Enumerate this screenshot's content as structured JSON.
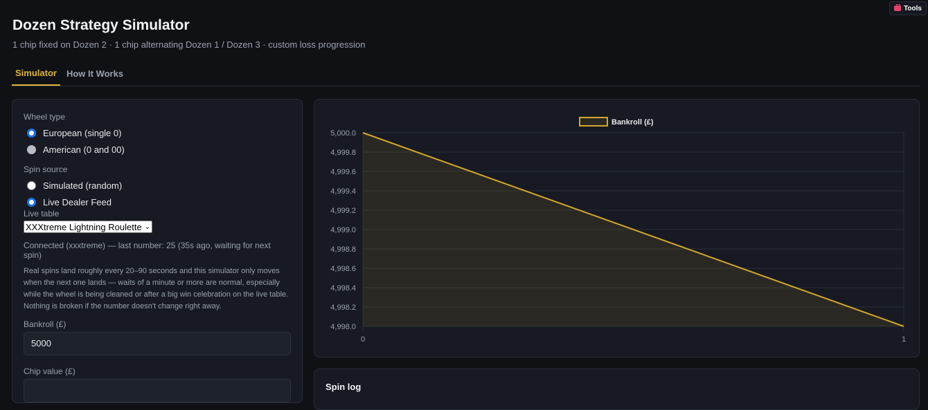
{
  "tools": {
    "label": "Tools",
    "icon": "toolbox-icon"
  },
  "header": {
    "title": "Dozen Strategy Simulator",
    "subtitle": "1 chip fixed on Dozen 2 · 1 chip alternating Dozen 1 / Dozen 3 · custom loss progression"
  },
  "tabs": [
    {
      "label": "Simulator",
      "active": true
    },
    {
      "label": "How It Works",
      "active": false
    }
  ],
  "controls": {
    "wheel_type": {
      "label": "Wheel type",
      "options": [
        {
          "label": "European (single 0)",
          "checked": true
        },
        {
          "label": "American (0 and 00)",
          "checked": false
        }
      ]
    },
    "spin_source": {
      "label": "Spin source",
      "options": [
        {
          "label": "Simulated (random)",
          "checked": false
        },
        {
          "label": "Live Dealer Feed",
          "checked": true
        }
      ]
    },
    "live_table": {
      "label": "Live table",
      "selected": "XXXtreme Lightning Roulette"
    },
    "status": "Connected (xxxtreme) — last number: 25 (35s ago, waiting for next spin)",
    "note": "Real spins land roughly every 20–90 seconds and this simulator only moves when the next one lands — waits of a minute or more are normal, especially while the wheel is being cleaned or after a big win celebration on the live table. Nothing is broken if the number doesn't change right away.",
    "bankroll": {
      "label": "Bankroll (£)",
      "value": "5000"
    },
    "chip_value": {
      "label": "Chip value (£)",
      "value": ""
    }
  },
  "chart_data": {
    "type": "line",
    "title": "",
    "xlabel": "",
    "ylabel": "",
    "legend": "top-center",
    "grid": true,
    "x_ticks": [
      "0",
      "1"
    ],
    "y_ticks": [
      "5,000.0",
      "4,999.8",
      "4,999.6",
      "4,999.4",
      "4,999.2",
      "4,999.0",
      "4,998.8",
      "4,998.6",
      "4,998.4",
      "4,998.2",
      "4,998.0"
    ],
    "xlim": [
      0,
      1
    ],
    "ylim": [
      4998.0,
      5000.0
    ],
    "series": [
      {
        "name": "Bankroll (£)",
        "color": "#d4a72c",
        "fill": true,
        "x": [
          0,
          1
        ],
        "y": [
          5000.0,
          4998.0
        ]
      }
    ]
  },
  "spin_log": {
    "title": "Spin log"
  }
}
